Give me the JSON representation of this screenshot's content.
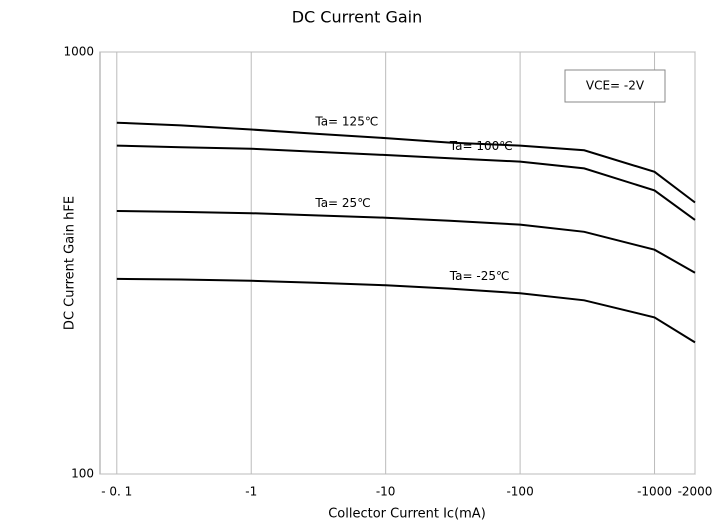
{
  "chart_data": {
    "type": "line",
    "title": "DC Current Gain",
    "x_label": "Collector Current   Ic(mA)",
    "y_label": "DC Current Gain  hFE",
    "annotation": "VCE= -2V",
    "x": [
      -0.1,
      -0.3,
      -1,
      -3,
      -10,
      -30,
      -100,
      -300,
      -1000,
      -2000
    ],
    "series": [
      {
        "name": "Ta= 125℃",
        "color": "#000000",
        "values": [
          680,
          670,
          655,
          640,
          625,
          610,
          600,
          585,
          520,
          440
        ]
      },
      {
        "name": "Ta= 100℃",
        "color": "#000000",
        "values": [
          600,
          595,
          590,
          580,
          570,
          560,
          550,
          530,
          470,
          400
        ]
      },
      {
        "name": "Ta= 25℃",
        "color": "#000000",
        "values": [
          420,
          418,
          415,
          410,
          405,
          398,
          390,
          375,
          340,
          300
        ]
      },
      {
        "name": "Ta= -25℃",
        "color": "#000000",
        "values": [
          290,
          289,
          287,
          284,
          280,
          275,
          268,
          258,
          235,
          205
        ]
      }
    ],
    "xscale": "log",
    "yscale": "log",
    "xlim": [
      -0.075,
      -2000
    ],
    "ylim": [
      100,
      1000
    ],
    "xticks": [
      {
        "value": -0.1,
        "label": "- 0. 1"
      },
      -1,
      -10,
      -100,
      -1000,
      -2000
    ],
    "yticks": [
      100,
      1000
    ],
    "grid": true
  }
}
